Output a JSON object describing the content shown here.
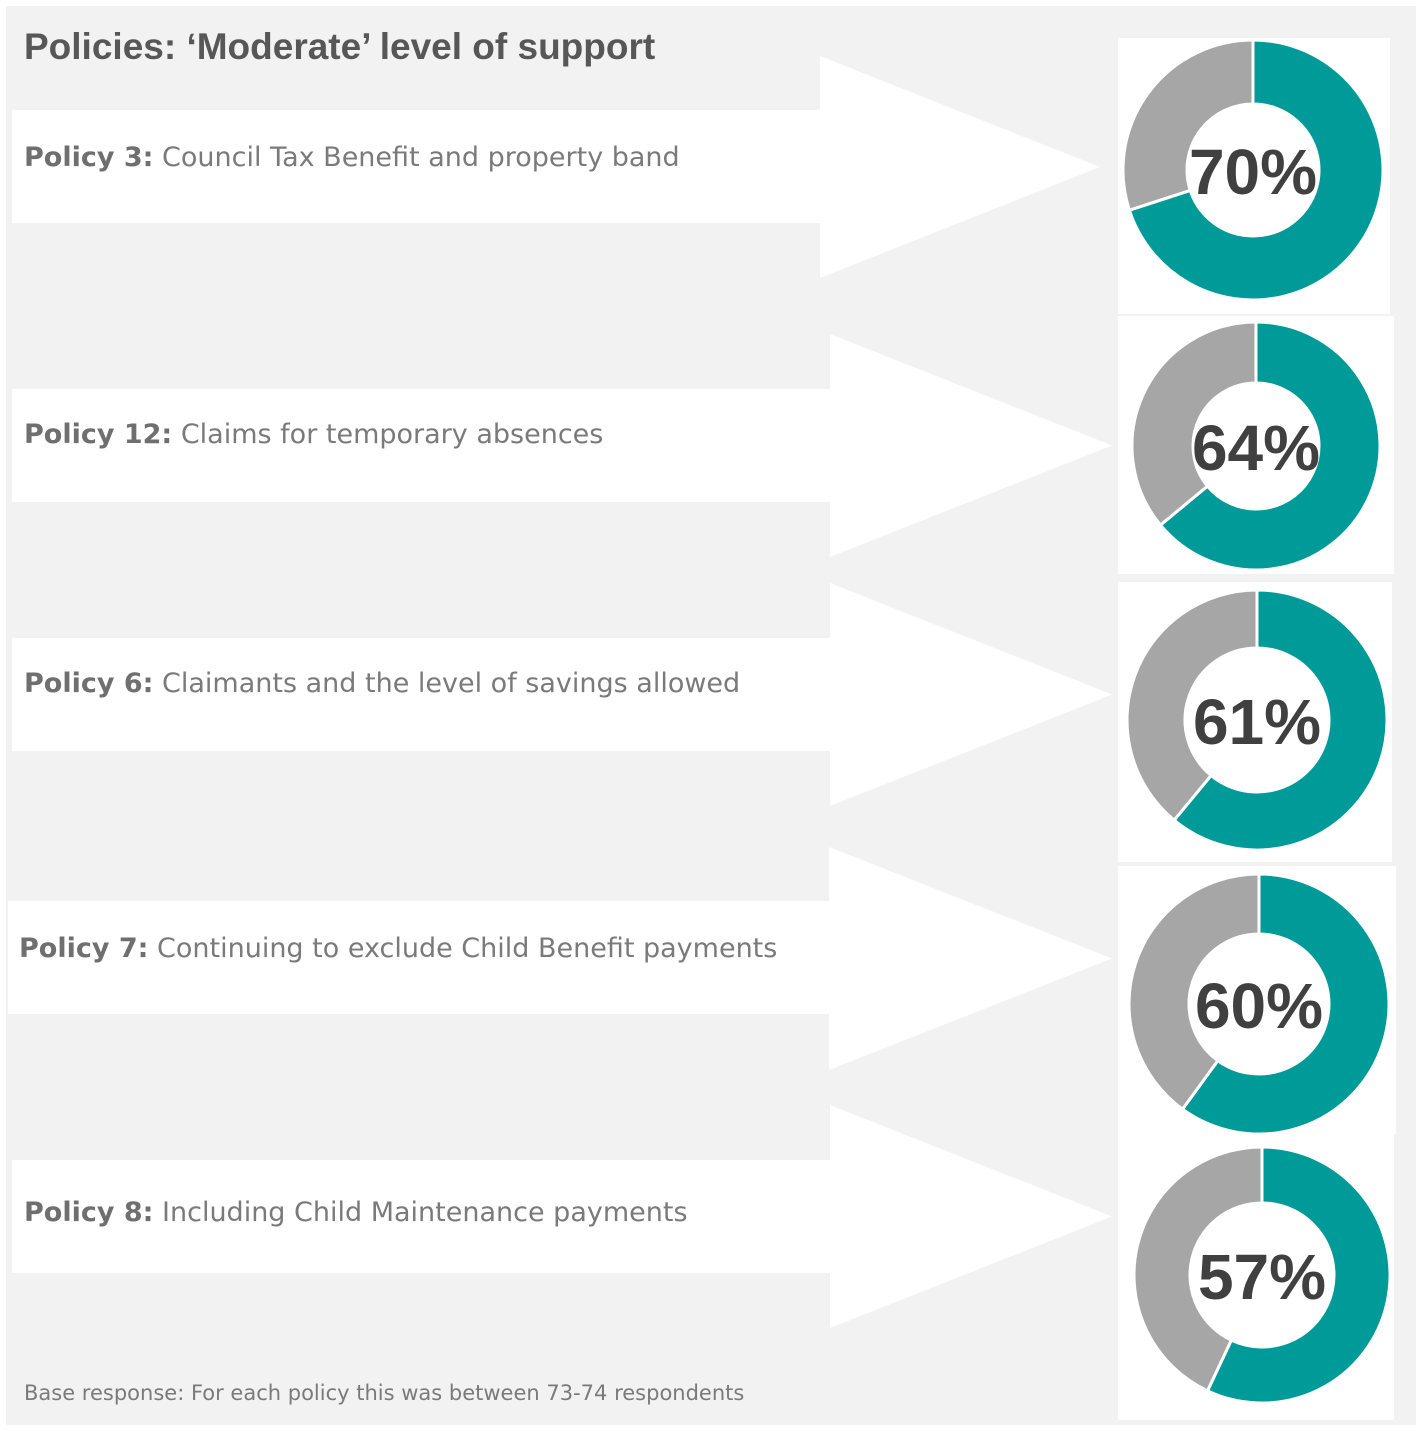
{
  "title": "Policies: ‘Moderate’ level of support",
  "footnote": "Base response: For each policy this was between 73-74 respondents",
  "colors": {
    "support": "#009a98",
    "remainder": "#a6a6a6",
    "background": "#f2f2f2",
    "arrow": "#ffffff",
    "label_text": "#404040"
  },
  "chart_data": {
    "type": "pie",
    "variant": "donut",
    "title": "Policies: ‘Moderate’ level of support",
    "series": [
      {
        "policy": "Policy 3:",
        "description": "Council Tax Benefit and property band",
        "value": 70,
        "label": "70%"
      },
      {
        "policy": "Policy 12:",
        "description": "Claims for temporary absences",
        "value": 64,
        "label": "64%"
      },
      {
        "policy": "Policy 6:",
        "description": "Claimants and the level of savings allowed",
        "value": 61,
        "label": "61%"
      },
      {
        "policy": "Policy 7:",
        "description": "Continuing to exclude Child Benefit payments",
        "value": 60,
        "label": "60%"
      },
      {
        "policy": "Policy 8:",
        "description": "Including Child Maintenance payments",
        "value": 57,
        "label": "57%"
      }
    ],
    "max": 100
  }
}
